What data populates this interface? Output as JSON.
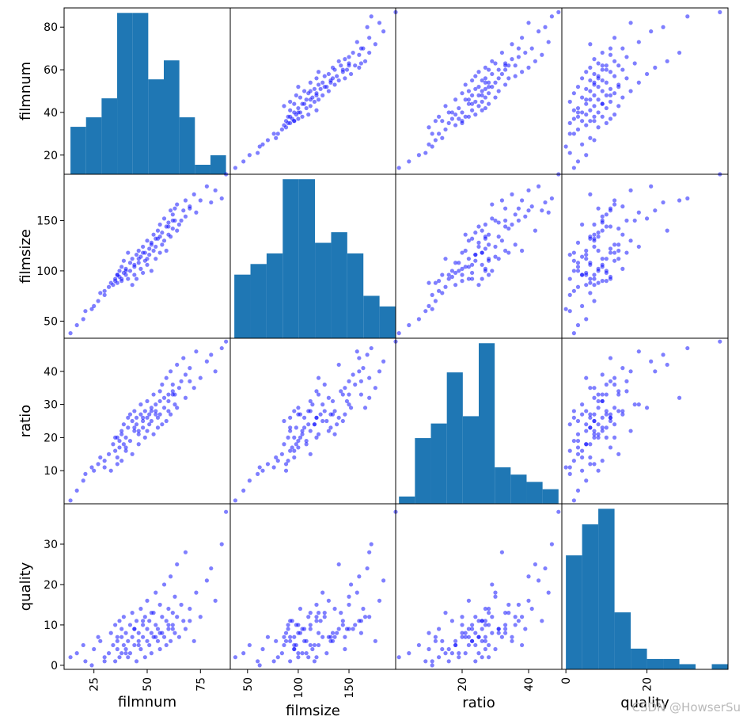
{
  "chart_data": {
    "type": "scatter-matrix",
    "variables": [
      "filmnum",
      "filmsize",
      "ratio",
      "quality"
    ],
    "ranges": {
      "filmnum": [
        11,
        89
      ],
      "filmsize": [
        33,
        196
      ],
      "ratio": [
        0,
        50
      ],
      "quality": [
        -1,
        40
      ]
    },
    "ticks": {
      "filmnum": [
        25,
        50,
        75
      ],
      "filmsize": [
        50,
        100,
        150
      ],
      "ratio": [
        20,
        40
      ],
      "quality": [
        0,
        20
      ]
    },
    "y_ticks": {
      "filmnum": [
        20,
        40,
        60,
        80
      ],
      "filmsize": [
        50,
        100,
        150
      ],
      "ratio": [
        10,
        20,
        30,
        40
      ],
      "quality": [
        0,
        10,
        20,
        30
      ]
    },
    "histograms": {
      "filmnum": {
        "edges": [
          14,
          21.3,
          28.6,
          35.9,
          43.2,
          50.5,
          57.8,
          65.1,
          72.4,
          79.7,
          87
        ],
        "counts": [
          5,
          6,
          8,
          17,
          17,
          10,
          12,
          6,
          1,
          2
        ]
      },
      "filmsize": {
        "edges": [
          37,
          52.9,
          68.8,
          84.7,
          100.6,
          116.5,
          132.4,
          148.3,
          164.2,
          180.1,
          196
        ],
        "counts": [
          6,
          7,
          8,
          15,
          15,
          9,
          10,
          8,
          4,
          3
        ]
      },
      "ratio": {
        "edges": [
          1,
          5.8,
          10.6,
          15.4,
          20.2,
          25.0,
          29.8,
          34.6,
          39.4,
          44.2,
          49
        ],
        "counts": [
          1,
          9,
          11,
          18,
          12,
          22,
          5,
          4,
          3,
          2
        ]
      },
      "quality": {
        "edges": [
          0,
          4,
          8,
          12,
          16,
          20,
          24,
          28,
          32,
          36,
          40
        ],
        "counts": [
          22,
          28,
          31,
          11,
          4,
          2,
          2,
          1,
          0,
          1
        ]
      }
    },
    "points": {
      "filmnum": [
        14,
        17,
        20,
        21,
        24,
        25,
        27,
        28,
        30,
        32,
        33,
        34,
        35,
        35,
        36,
        36,
        37,
        37,
        38,
        38,
        38,
        39,
        39,
        40,
        40,
        41,
        41,
        42,
        42,
        43,
        43,
        44,
        44,
        45,
        45,
        46,
        46,
        47,
        47,
        48,
        48,
        49,
        49,
        50,
        50,
        50,
        51,
        51,
        52,
        52,
        53,
        53,
        54,
        54,
        55,
        55,
        56,
        56,
        57,
        57,
        58,
        58,
        59,
        59,
        60,
        60,
        61,
        61,
        62,
        62,
        63,
        63,
        64,
        64,
        65,
        66,
        67,
        68,
        68,
        70,
        72,
        73,
        75,
        78,
        80,
        82,
        85,
        87,
        36,
        44,
        48,
        52,
        56,
        60,
        30,
        40,
        46,
        54,
        62,
        70
      ],
      "filmsize": [
        38,
        46,
        52,
        60,
        62,
        65,
        70,
        78,
        80,
        84,
        88,
        86,
        92,
        90,
        96,
        88,
        100,
        94,
        92,
        104,
        90,
        98,
        110,
        96,
        102,
        118,
        92,
        100,
        108,
        86,
        112,
        96,
        104,
        116,
        92,
        108,
        120,
        102,
        114,
        98,
        124,
        110,
        118,
        106,
        112,
        130,
        116,
        122,
        100,
        128,
        120,
        136,
        112,
        124,
        132,
        140,
        118,
        146,
        126,
        138,
        152,
        130,
        144,
        120,
        136,
        148,
        160,
        134,
        142,
        156,
        150,
        162,
        140,
        166,
        146,
        150,
        160,
        170,
        154,
        164,
        176,
        158,
        170,
        184,
        168,
        180,
        172,
        196,
        96,
        106,
        118,
        126,
        134,
        144,
        76,
        100,
        112,
        132,
        150,
        162
      ],
      "ratio": [
        1,
        4,
        7,
        9,
        11,
        10,
        12,
        14,
        13,
        15,
        10,
        18,
        16,
        20,
        14,
        12,
        19,
        17,
        22,
        21,
        13,
        18,
        24,
        16,
        20,
        26,
        23,
        27,
        19,
        25,
        15,
        28,
        22,
        24,
        26,
        18,
        21,
        27,
        30,
        23,
        25,
        28,
        20,
        26,
        31,
        22,
        24,
        27,
        29,
        25,
        33,
        21,
        28,
        30,
        23,
        26,
        34,
        27,
        36,
        24,
        29,
        32,
        25,
        38,
        28,
        31,
        40,
        27,
        34,
        36,
        30,
        33,
        42,
        29,
        35,
        37,
        44,
        32,
        39,
        41,
        35,
        46,
        38,
        43,
        45,
        40,
        47,
        49,
        20,
        23,
        26,
        28,
        31,
        33,
        11,
        17,
        22,
        27,
        33,
        37
      ],
      "quality": [
        2,
        3,
        5,
        1,
        0,
        4,
        7,
        6,
        2,
        3,
        8,
        5,
        1,
        10,
        4,
        6,
        2,
        11,
        7,
        3,
        9,
        5,
        12,
        4,
        8,
        2,
        6,
        10,
        3,
        7,
        13,
        5,
        9,
        1,
        11,
        6,
        8,
        14,
        4,
        10,
        7,
        2,
        12,
        6,
        9,
        16,
        5,
        11,
        8,
        3,
        13,
        7,
        10,
        18,
        6,
        9,
        15,
        4,
        12,
        8,
        20,
        7,
        11,
        5,
        14,
        9,
        22,
        6,
        13,
        10,
        17,
        8,
        25,
        12,
        7,
        15,
        11,
        28,
        9,
        14,
        6,
        18,
        12,
        21,
        24,
        16,
        30,
        38,
        7,
        9,
        11,
        13,
        8,
        10,
        1,
        3,
        5,
        7,
        9,
        11
      ]
    }
  },
  "labels": {
    "filmnum": "filmnum",
    "filmsize": "filmsize",
    "ratio": "ratio",
    "quality": "quality"
  },
  "watermark": "CSDN @HowserSu",
  "colors": {
    "hist": "#1f77b4",
    "scatter": "#0000ff"
  }
}
